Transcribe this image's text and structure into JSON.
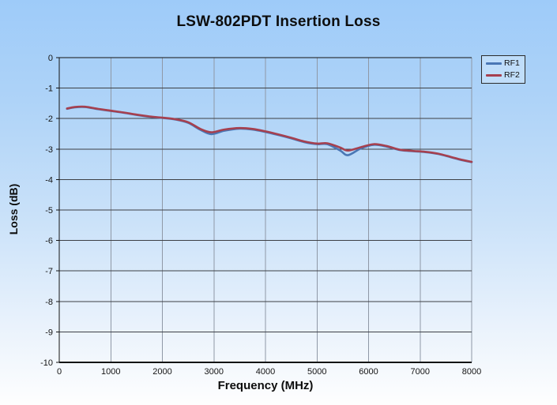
{
  "chart_data": {
    "type": "line",
    "title": "LSW-802PDT Insertion Loss",
    "xlabel": "Frequency (MHz)",
    "ylabel": "Loss (dB)",
    "xlim": [
      0,
      8000
    ],
    "ylim": [
      -10,
      0
    ],
    "xticks": [
      0,
      1000,
      2000,
      3000,
      4000,
      5000,
      6000,
      7000,
      8000
    ],
    "yticks": [
      0,
      -1,
      -2,
      -3,
      -4,
      -5,
      -6,
      -7,
      -8,
      -9,
      -10
    ],
    "grid": true,
    "legend_position": "top-right",
    "x": [
      150,
      300,
      500,
      750,
      1000,
      1250,
      1500,
      1750,
      2000,
      2250,
      2500,
      2750,
      2950,
      3200,
      3500,
      3750,
      4000,
      4250,
      4500,
      4750,
      5000,
      5200,
      5450,
      5600,
      5850,
      6100,
      6350,
      6600,
      6850,
      7100,
      7350,
      7600,
      7800,
      8000
    ],
    "series": [
      {
        "name": "RF1",
        "color": "#4a77b5",
        "values": [
          -1.68,
          -1.63,
          -1.62,
          -1.69,
          -1.75,
          -1.81,
          -1.88,
          -1.94,
          -1.98,
          -2.03,
          -2.14,
          -2.38,
          -2.51,
          -2.4,
          -2.33,
          -2.36,
          -2.44,
          -2.54,
          -2.65,
          -2.77,
          -2.84,
          -2.84,
          -3.05,
          -3.2,
          -2.98,
          -2.86,
          -2.92,
          -3.03,
          -3.07,
          -3.1,
          -3.16,
          -3.27,
          -3.36,
          -3.43
        ]
      },
      {
        "name": "RF2",
        "color": "#a6404f",
        "values": [
          -1.67,
          -1.62,
          -1.61,
          -1.68,
          -1.74,
          -1.8,
          -1.87,
          -1.93,
          -1.97,
          -2.02,
          -2.12,
          -2.35,
          -2.45,
          -2.36,
          -2.31,
          -2.34,
          -2.42,
          -2.52,
          -2.63,
          -2.75,
          -2.82,
          -2.81,
          -2.95,
          -3.05,
          -2.94,
          -2.84,
          -2.9,
          -3.02,
          -3.06,
          -3.09,
          -3.15,
          -3.26,
          -3.35,
          -3.42
        ]
      }
    ]
  },
  "colors": {
    "background_top": "#9ecbf9",
    "background_bottom": "#fefefe",
    "axis": "#141414",
    "h_gridline": "#3d4045",
    "v_gridline": "#8f98a6",
    "tick_text": "#141414"
  }
}
